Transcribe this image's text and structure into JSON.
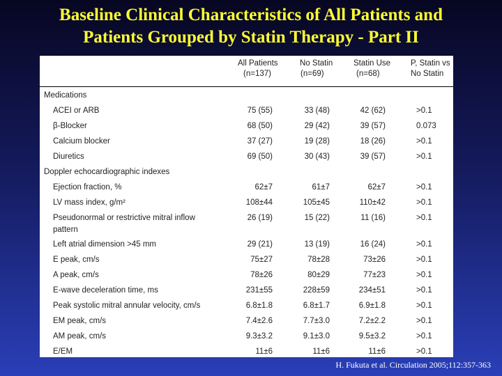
{
  "title": {
    "line1": "Baseline Clinical Characteristics of All Patients and",
    "line2": "Patients Grouped by Statin Therapy - Part II"
  },
  "table": {
    "headers": {
      "all": [
        "All Patients",
        "(n=137)"
      ],
      "no_statin": [
        "No Statin",
        "(n=69)"
      ],
      "statin_use": [
        "Statin Use",
        "(n=68)"
      ],
      "p": [
        "P, Statin vs",
        "No Statin"
      ]
    },
    "rows": [
      {
        "label": "Medications",
        "section": true
      },
      {
        "label": "ACEI or ARB",
        "all": "75 (55)",
        "no": "33 (48)",
        "yes": "42 (62)",
        "p": ">0.1"
      },
      {
        "label": "β-Blocker",
        "all": "68 (50)",
        "no": "29 (42)",
        "yes": "39 (57)",
        "p": "0.073"
      },
      {
        "label": "Calcium blocker",
        "all": "37 (27)",
        "no": "19 (28)",
        "yes": "18 (26)",
        "p": ">0.1"
      },
      {
        "label": "Diuretics",
        "all": "69 (50)",
        "no": "30 (43)",
        "yes": "39 (57)",
        "p": ">0.1"
      },
      {
        "label": "Doppler echocardiographic indexes",
        "section": true
      },
      {
        "label": "Ejection fraction, %",
        "all": "62±7",
        "no": "61±7",
        "yes": "62±7",
        "p": ">0.1"
      },
      {
        "label": "LV mass index, g/m²",
        "all": "108±44",
        "no": "105±45",
        "yes": "110±42",
        "p": ">0.1"
      },
      {
        "label": "Pseudonormal or restrictive mitral inflow pattern",
        "all": "26 (19)",
        "no": "15 (22)",
        "yes": "11 (16)",
        "p": ">0.1",
        "tall": true
      },
      {
        "label": "Left atrial dimension >45 mm",
        "all": "29 (21)",
        "no": "13 (19)",
        "yes": "16 (24)",
        "p": ">0.1"
      },
      {
        "label": "E peak, cm/s",
        "all": "75±27",
        "no": "78±28",
        "yes": "73±26",
        "p": ">0.1"
      },
      {
        "label": "A peak, cm/s",
        "all": "78±26",
        "no": "80±29",
        "yes": "77±23",
        "p": ">0.1"
      },
      {
        "label": "E-wave deceleration time, ms",
        "all": "231±55",
        "no": "228±59",
        "yes": "234±51",
        "p": ">0.1"
      },
      {
        "label": "Peak systolic mitral annular velocity, cm/s",
        "all": "6.8±1.8",
        "no": "6.8±1.7",
        "yes": "6.9±1.8",
        "p": ">0.1"
      },
      {
        "label": "EM peak, cm/s",
        "all": "7.4±2.6",
        "no": "7.7±3.0",
        "yes": "7.2±2.2",
        "p": ">0.1"
      },
      {
        "label": "AM peak, cm/s",
        "all": "9.3±3.2",
        "no": "9.1±3.0",
        "yes": "9.5±3.2",
        "p": ">0.1"
      },
      {
        "label": "E/EM",
        "all": "11±6",
        "no": "11±6",
        "yes": "11±6",
        "p": ">0.1"
      }
    ]
  },
  "citation": "H. Fukuta et al. Circulation 2005;112:357-363"
}
